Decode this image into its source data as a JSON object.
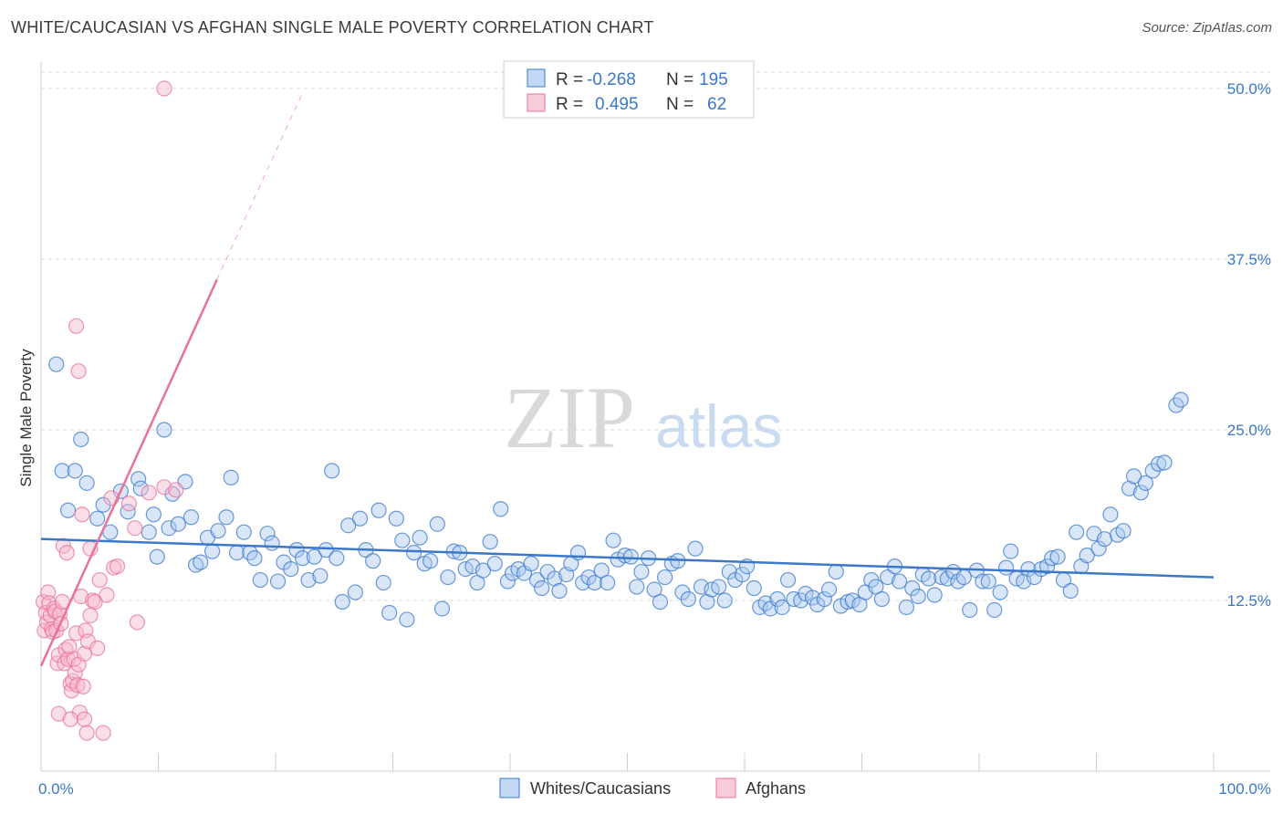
{
  "title": "WHITE/CAUCASIAN VS AFGHAN SINGLE MALE POVERTY CORRELATION CHART",
  "source": "Source: ZipAtlas.com",
  "watermark": {
    "zip": "ZIP",
    "atlas": "atlas"
  },
  "colors": {
    "blue": "#3b78c9",
    "blue_fill": "#a9c8f0",
    "pink": "#e8729a",
    "pink_fill": "#f6b7cb",
    "grid": "#d8d8d8"
  },
  "chart_data": {
    "type": "scatter",
    "title": "WHITE/CAUCASIAN VS AFGHAN SINGLE MALE POVERTY CORRELATION CHART",
    "xlabel": "",
    "ylabel": "Single Male Poverty",
    "xlim": [
      0,
      100
    ],
    "ylim": [
      0,
      50
    ],
    "x_tick_labels": [
      "0.0%",
      "100.0%"
    ],
    "y_ticks": [
      12.5,
      25.0,
      37.5,
      50.0
    ],
    "y_tick_labels": [
      "12.5%",
      "25.0%",
      "37.5%",
      "50.0%"
    ],
    "legend": {
      "rows": [
        {
          "r_label": "R =",
          "r_value": "-0.268",
          "n_label": "N =",
          "n_value": "195"
        },
        {
          "r_label": "R =",
          "r_value": "0.495",
          "n_label": "N =",
          "n_value": "62"
        }
      ]
    },
    "series": [
      {
        "name": "Whites/Caucasians",
        "color": "blue",
        "trend": {
          "x": [
            0,
            100
          ],
          "y": [
            17.0,
            14.2
          ]
        },
        "points": [
          [
            1.3,
            29.8
          ],
          [
            3.4,
            24.3
          ],
          [
            1.8,
            22.0
          ],
          [
            2.9,
            22.0
          ],
          [
            3.9,
            21.1
          ],
          [
            2.3,
            19.1
          ],
          [
            5.3,
            19.5
          ],
          [
            4.8,
            18.5
          ],
          [
            5.9,
            17.5
          ],
          [
            6.8,
            20.5
          ],
          [
            7.4,
            19.0
          ],
          [
            8.3,
            21.4
          ],
          [
            8.5,
            20.7
          ],
          [
            9.2,
            17.5
          ],
          [
            9.6,
            18.8
          ],
          [
            9.9,
            15.7
          ],
          [
            10.5,
            25.0
          ],
          [
            10.9,
            17.8
          ],
          [
            11.2,
            20.3
          ],
          [
            11.7,
            18.1
          ],
          [
            12.3,
            21.2
          ],
          [
            12.8,
            18.6
          ],
          [
            13.2,
            15.1
          ],
          [
            13.6,
            15.3
          ],
          [
            14.2,
            17.1
          ],
          [
            14.6,
            16.1
          ],
          [
            15.1,
            17.6
          ],
          [
            15.8,
            18.6
          ],
          [
            16.2,
            21.5
          ],
          [
            16.7,
            16.0
          ],
          [
            17.3,
            17.5
          ],
          [
            17.8,
            16.0
          ],
          [
            18.2,
            15.6
          ],
          [
            18.7,
            14.0
          ],
          [
            19.3,
            17.4
          ],
          [
            19.7,
            16.7
          ],
          [
            20.2,
            13.9
          ],
          [
            20.7,
            15.3
          ],
          [
            21.3,
            14.8
          ],
          [
            21.8,
            16.2
          ],
          [
            22.3,
            15.6
          ],
          [
            22.8,
            14.0
          ],
          [
            23.3,
            15.7
          ],
          [
            23.8,
            14.3
          ],
          [
            24.3,
            16.2
          ],
          [
            24.8,
            22.0
          ],
          [
            25.2,
            15.6
          ],
          [
            25.7,
            12.4
          ],
          [
            26.2,
            18.0
          ],
          [
            26.8,
            13.1
          ],
          [
            27.2,
            18.5
          ],
          [
            27.7,
            16.2
          ],
          [
            28.3,
            15.4
          ],
          [
            28.8,
            19.1
          ],
          [
            29.2,
            13.8
          ],
          [
            29.7,
            11.6
          ],
          [
            30.3,
            18.5
          ],
          [
            30.8,
            16.9
          ],
          [
            31.2,
            11.1
          ],
          [
            31.8,
            16.0
          ],
          [
            32.3,
            17.1
          ],
          [
            32.7,
            15.2
          ],
          [
            33.2,
            15.4
          ],
          [
            33.8,
            18.1
          ],
          [
            34.2,
            11.9
          ],
          [
            34.7,
            14.2
          ],
          [
            35.2,
            16.1
          ],
          [
            35.7,
            16.0
          ],
          [
            36.2,
            14.8
          ],
          [
            36.8,
            15.0
          ],
          [
            37.2,
            13.8
          ],
          [
            37.7,
            14.7
          ],
          [
            38.3,
            16.8
          ],
          [
            38.7,
            15.2
          ],
          [
            39.2,
            19.2
          ],
          [
            39.8,
            13.9
          ],
          [
            40.2,
            14.5
          ],
          [
            40.7,
            14.8
          ],
          [
            41.2,
            14.5
          ],
          [
            41.8,
            15.2
          ],
          [
            42.3,
            14.0
          ],
          [
            42.7,
            13.4
          ],
          [
            43.2,
            14.6
          ],
          [
            43.8,
            14.1
          ],
          [
            44.2,
            13.2
          ],
          [
            44.8,
            14.4
          ],
          [
            45.2,
            15.2
          ],
          [
            45.8,
            16.0
          ],
          [
            46.2,
            13.8
          ],
          [
            46.7,
            14.2
          ],
          [
            47.2,
            13.8
          ],
          [
            47.8,
            14.7
          ],
          [
            48.3,
            13.8
          ],
          [
            48.8,
            16.9
          ],
          [
            49.2,
            15.5
          ],
          [
            49.8,
            15.8
          ],
          [
            50.3,
            15.7
          ],
          [
            50.8,
            13.5
          ],
          [
            51.2,
            14.6
          ],
          [
            51.8,
            15.6
          ],
          [
            52.3,
            13.3
          ],
          [
            52.8,
            12.4
          ],
          [
            53.2,
            14.2
          ],
          [
            53.8,
            15.2
          ],
          [
            54.3,
            15.4
          ],
          [
            54.7,
            13.1
          ],
          [
            55.2,
            12.6
          ],
          [
            55.8,
            16.3
          ],
          [
            56.3,
            13.5
          ],
          [
            56.8,
            12.4
          ],
          [
            57.2,
            13.3
          ],
          [
            57.8,
            13.5
          ],
          [
            58.3,
            12.5
          ],
          [
            58.7,
            14.6
          ],
          [
            59.2,
            14.0
          ],
          [
            59.8,
            14.4
          ],
          [
            60.2,
            15.0
          ],
          [
            60.8,
            13.4
          ],
          [
            61.3,
            12.0
          ],
          [
            61.8,
            12.3
          ],
          [
            62.2,
            11.9
          ],
          [
            62.8,
            12.6
          ],
          [
            63.2,
            12.0
          ],
          [
            63.7,
            14.0
          ],
          [
            64.2,
            12.6
          ],
          [
            64.8,
            12.5
          ],
          [
            65.2,
            13.0
          ],
          [
            65.8,
            12.7
          ],
          [
            66.2,
            12.2
          ],
          [
            66.8,
            12.6
          ],
          [
            67.2,
            13.3
          ],
          [
            67.8,
            14.6
          ],
          [
            68.2,
            12.1
          ],
          [
            68.8,
            12.4
          ],
          [
            69.2,
            12.5
          ],
          [
            69.8,
            12.2
          ],
          [
            70.3,
            13.1
          ],
          [
            70.8,
            14.0
          ],
          [
            71.2,
            13.5
          ],
          [
            71.7,
            12.6
          ],
          [
            72.2,
            14.2
          ],
          [
            72.8,
            15.0
          ],
          [
            73.2,
            13.9
          ],
          [
            73.8,
            12.0
          ],
          [
            74.3,
            13.4
          ],
          [
            74.8,
            12.8
          ],
          [
            75.2,
            14.4
          ],
          [
            75.7,
            14.1
          ],
          [
            76.2,
            12.9
          ],
          [
            76.8,
            14.2
          ],
          [
            77.3,
            14.1
          ],
          [
            77.8,
            14.6
          ],
          [
            78.2,
            13.9
          ],
          [
            78.7,
            14.2
          ],
          [
            79.2,
            11.8
          ],
          [
            79.8,
            14.7
          ],
          [
            80.3,
            13.9
          ],
          [
            80.8,
            13.9
          ],
          [
            81.3,
            11.8
          ],
          [
            81.8,
            13.1
          ],
          [
            82.3,
            14.9
          ],
          [
            82.7,
            16.1
          ],
          [
            83.2,
            14.1
          ],
          [
            83.8,
            13.9
          ],
          [
            84.2,
            14.8
          ],
          [
            84.7,
            14.2
          ],
          [
            85.3,
            14.8
          ],
          [
            85.8,
            15.0
          ],
          [
            86.2,
            15.6
          ],
          [
            86.7,
            15.7
          ],
          [
            87.2,
            14.0
          ],
          [
            87.8,
            13.2
          ],
          [
            88.3,
            17.5
          ],
          [
            88.7,
            15.0
          ],
          [
            89.2,
            15.8
          ],
          [
            89.8,
            17.4
          ],
          [
            90.2,
            16.3
          ],
          [
            90.7,
            17.0
          ],
          [
            91.2,
            18.8
          ],
          [
            91.8,
            17.3
          ],
          [
            92.3,
            17.6
          ],
          [
            92.8,
            20.7
          ],
          [
            93.2,
            21.6
          ],
          [
            93.8,
            20.4
          ],
          [
            94.2,
            21.1
          ],
          [
            94.8,
            22.0
          ],
          [
            95.3,
            22.5
          ],
          [
            95.8,
            22.6
          ],
          [
            96.8,
            26.8
          ],
          [
            97.2,
            27.2
          ]
        ]
      },
      {
        "name": "Afghans",
        "color": "pink",
        "trend": {
          "x": [
            0,
            15.0
          ],
          "y": [
            7.7,
            36.0
          ],
          "dash_to": {
            "x": 22.2,
            "y": 49.5
          }
        },
        "points": [
          [
            0.2,
            12.4
          ],
          [
            0.3,
            10.3
          ],
          [
            0.4,
            11.6
          ],
          [
            0.5,
            10.9
          ],
          [
            0.6,
            13.1
          ],
          [
            0.7,
            12.3
          ],
          [
            0.8,
            11.4
          ],
          [
            0.9,
            10.4
          ],
          [
            1.0,
            10.2
          ],
          [
            1.1,
            11.9
          ],
          [
            1.2,
            11.7
          ],
          [
            1.3,
            10.3
          ],
          [
            1.4,
            7.9
          ],
          [
            1.5,
            8.5
          ],
          [
            1.6,
            11.5
          ],
          [
            1.7,
            10.8
          ],
          [
            1.8,
            12.4
          ],
          [
            1.9,
            16.5
          ],
          [
            2.0,
            7.9
          ],
          [
            2.1,
            8.9
          ],
          [
            2.2,
            16.0
          ],
          [
            2.3,
            8.2
          ],
          [
            2.4,
            9.1
          ],
          [
            2.5,
            6.4
          ],
          [
            2.6,
            5.9
          ],
          [
            2.7,
            6.6
          ],
          [
            2.8,
            8.2
          ],
          [
            2.9,
            7.2
          ],
          [
            3.0,
            10.1
          ],
          [
            3.1,
            6.3
          ],
          [
            3.2,
            7.8
          ],
          [
            3.3,
            4.3
          ],
          [
            3.4,
            12.8
          ],
          [
            3.5,
            18.8
          ],
          [
            3.6,
            6.2
          ],
          [
            3.7,
            8.6
          ],
          [
            3.8,
            10.3
          ],
          [
            3.9,
            2.8
          ],
          [
            4.0,
            9.5
          ],
          [
            4.2,
            16.3
          ],
          [
            4.4,
            12.5
          ],
          [
            4.6,
            12.4
          ],
          [
            4.8,
            9.0
          ],
          [
            5.0,
            14.0
          ],
          [
            5.3,
            2.8
          ],
          [
            5.6,
            12.9
          ],
          [
            6.0,
            20.0
          ],
          [
            6.2,
            14.9
          ],
          [
            6.5,
            15.0
          ],
          [
            7.5,
            19.6
          ],
          [
            8.0,
            17.8
          ],
          [
            9.2,
            20.4
          ],
          [
            10.5,
            20.8
          ],
          [
            11.5,
            20.6
          ],
          [
            1.5,
            4.2
          ],
          [
            2.5,
            3.8
          ],
          [
            3.0,
            32.6
          ],
          [
            3.2,
            29.3
          ],
          [
            3.7,
            3.8
          ],
          [
            4.2,
            11.4
          ],
          [
            8.2,
            10.9
          ],
          [
            10.5,
            50.0
          ]
        ]
      }
    ]
  },
  "bottom_legend": [
    {
      "label": "Whites/Caucasians",
      "color": "blue"
    },
    {
      "label": "Afghans",
      "color": "pink"
    }
  ]
}
